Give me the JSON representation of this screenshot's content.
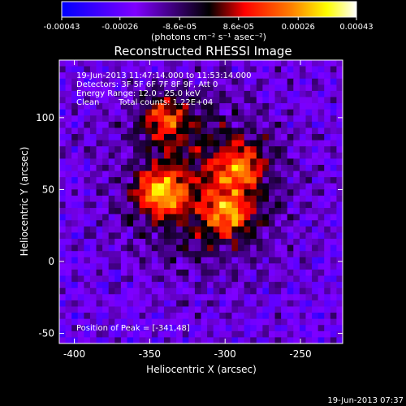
{
  "chart_data": {
    "type": "heatmap",
    "title": "Reconstructed RHESSI Image",
    "xlabel": "Heliocentric X (arcsec)",
    "ylabel": "Heliocentric Y (arcsec)",
    "xlim": [
      -410,
      -222
    ],
    "ylim": [
      -57,
      140
    ],
    "x_ticks": [
      -400,
      -350,
      -300,
      -250
    ],
    "x_tick_labels": [
      "-400",
      "-350",
      "-300",
      "-250"
    ],
    "y_ticks": [
      -50,
      0,
      50,
      100
    ],
    "y_tick_labels": [
      "-50",
      "0",
      "50",
      "100"
    ],
    "colorbar": {
      "range": [
        -0.00043,
        0.00043
      ],
      "tick_labels": [
        "-0.00043",
        "-0.00026",
        "-8.6e-05",
        "8.6e-05",
        "0.00026",
        "0.00043"
      ],
      "units": "(photons cm⁻² s⁻¹ asec⁻²)",
      "colors": [
        "#0000ff",
        "#7f00ff",
        "#000000",
        "#ff0000",
        "#ff8000",
        "#ffff00",
        "#ffffff"
      ]
    },
    "annotations": {
      "time_range": "19-Jun-2013 11:47:14.000 to 11:53:14.000",
      "detectors": "Detectors: 3F 5F 6F 7F 8F 9F, Att 0",
      "energy": "Energy Range: 12.0 - 25.0 keV",
      "clean": "Clean",
      "counts": "Total counts: 1.22E+04",
      "peak": "Position of Peak = [-341,48]"
    },
    "peak": [
      -341,
      48
    ],
    "bright_sources": [
      {
        "x": -343,
        "y": 48,
        "value": 0.00043
      },
      {
        "x": -297,
        "y": 33,
        "value": 0.00038
      },
      {
        "x": -340,
        "y": 100,
        "value": 0.00034
      },
      {
        "x": -290,
        "y": 66,
        "value": 0.00033
      }
    ],
    "grid": false
  },
  "footer": {
    "timestamp": "19-Jun-2013 07:37"
  }
}
